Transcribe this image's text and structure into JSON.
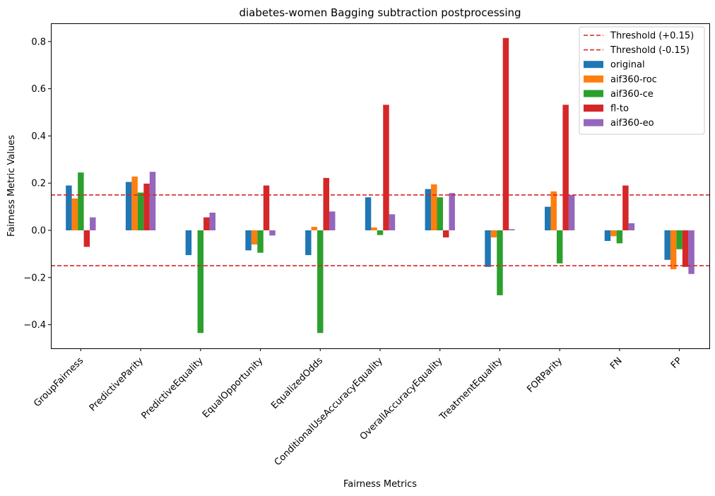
{
  "chart_data": {
    "type": "bar",
    "title": "diabetes-women Bagging subtraction postprocessing",
    "xlabel": "Fairness Metrics",
    "ylabel": "Fairness Metric Values",
    "ylim": [
      -0.5,
      0.88
    ],
    "yticks": [
      -0.4,
      -0.2,
      0.0,
      0.2,
      0.4,
      0.6,
      0.8
    ],
    "ytick_labels": [
      "−0.4",
      "−0.2",
      "0.0",
      "0.2",
      "0.4",
      "0.6",
      "0.8"
    ],
    "grid": false,
    "legend_position": "top-right",
    "categories": [
      "GroupFairness",
      "PredictiveParity",
      "PredictiveEquality",
      "EqualOpportunity",
      "EqualizedOdds",
      "ConditionalUseAccuracyEquality",
      "OverallAccuracyEquality",
      "TreatmentEquality",
      "FORParity",
      "FN",
      "FP"
    ],
    "thresholds": [
      {
        "name": "Threshold (+0.15)",
        "value": 0.15,
        "color": "#d62728"
      },
      {
        "name": "Threshold (-0.15)",
        "value": -0.15,
        "color": "#d62728"
      }
    ],
    "series": [
      {
        "name": "original",
        "color": "#1f77b4",
        "values": [
          0.19,
          0.205,
          -0.105,
          -0.085,
          -0.105,
          0.14,
          0.175,
          -0.155,
          0.1,
          -0.045,
          -0.125
        ]
      },
      {
        "name": "aif360-roc",
        "color": "#ff7f0e",
        "values": [
          0.135,
          0.228,
          0.0,
          -0.06,
          0.015,
          0.012,
          0.195,
          -0.03,
          0.165,
          -0.025,
          -0.165
        ]
      },
      {
        "name": "aif360-ce",
        "color": "#2ca02c",
        "values": [
          0.245,
          0.16,
          -0.435,
          -0.095,
          -0.435,
          -0.02,
          0.14,
          -0.275,
          -0.14,
          -0.055,
          -0.08
        ]
      },
      {
        "name": "fl-to",
        "color": "#d62728",
        "values": [
          -0.07,
          0.198,
          0.055,
          0.19,
          0.222,
          0.532,
          -0.03,
          0.815,
          0.532,
          0.19,
          -0.155
        ]
      },
      {
        "name": "aif360-eo",
        "color": "#9467bd",
        "values": [
          0.055,
          0.248,
          0.075,
          -0.022,
          0.08,
          0.068,
          0.158,
          0.005,
          0.15,
          0.03,
          -0.185
        ]
      }
    ]
  }
}
